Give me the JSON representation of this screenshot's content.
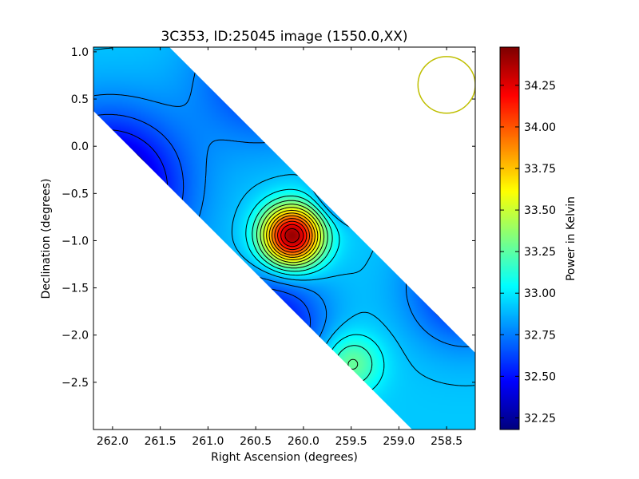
{
  "chart_data": {
    "type": "heatmap",
    "title": "3C353, ID:25045 image (1550.0,XX)",
    "xlabel": "Right Ascension (degrees)",
    "ylabel": "Declination (degrees)",
    "xlim": [
      262.2,
      258.2
    ],
    "ylim": [
      -3.0,
      1.05
    ],
    "x_ticks": [
      262.0,
      261.5,
      261.0,
      260.5,
      260.0,
      259.5,
      259.0,
      258.5
    ],
    "x_tick_labels": [
      "262.0",
      "261.5",
      "261.0",
      "260.5",
      "260.0",
      "259.5",
      "259.0",
      "258.5"
    ],
    "y_ticks": [
      1.0,
      0.5,
      0.0,
      -0.5,
      -1.0,
      -1.5,
      -2.0,
      -2.5
    ],
    "y_tick_labels": [
      "1.0",
      "0.5",
      "0.0",
      "−0.5",
      "−1.0",
      "−1.5",
      "−2.0",
      "−2.5"
    ],
    "colorbar": {
      "label": "Power in Kelvin",
      "colormap": "jet",
      "range": [
        32.18,
        34.48
      ],
      "ticks": [
        32.25,
        32.5,
        32.75,
        33.0,
        33.25,
        33.5,
        33.75,
        34.0,
        34.25
      ],
      "tick_labels": [
        "32.25",
        "32.50",
        "32.75",
        "33.00",
        "33.25",
        "33.50",
        "33.75",
        "34.00",
        "34.25"
      ]
    },
    "background_level": 32.92,
    "features": [
      {
        "kind": "peak",
        "ra": 260.12,
        "dec": -0.95,
        "value": 34.45
      },
      {
        "kind": "trough",
        "ra": 262.05,
        "dec": -0.45,
        "value": 32.2
      },
      {
        "kind": "trough",
        "ra": 260.35,
        "dec": -1.9,
        "value": 32.45
      },
      {
        "kind": "trough",
        "ra": 258.3,
        "dec": -1.5,
        "value": 32.5
      },
      {
        "kind": "trough",
        "ra": 259.6,
        "dec": -0.5,
        "value": 32.55
      },
      {
        "kind": "trough",
        "ra": 260.4,
        "dec": 0.75,
        "value": 32.55
      },
      {
        "kind": "peak",
        "ra": 258.55,
        "dec": -0.4,
        "value": 33.25
      },
      {
        "kind": "peak",
        "ra": 259.5,
        "dec": -2.3,
        "value": 33.3
      }
    ],
    "beam_circle": {
      "ra": 258.5,
      "dec": 0.65,
      "radius_deg": 0.3,
      "color": "#bfbf00"
    },
    "contour_color": "#000000",
    "grid": false
  }
}
